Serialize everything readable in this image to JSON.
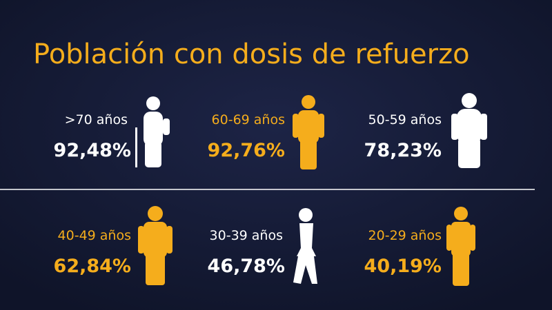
{
  "title": "Población con dosis de refuerzo",
  "groups": [
    {
      "label": ">70 años",
      "value": "92,48%"
    },
    {
      "label": "60-69 años",
      "value": "92,76%"
    },
    {
      "label": "50-59 años",
      "value": "78,23%"
    },
    {
      "label": "40-49 años",
      "value": "62,84%"
    },
    {
      "label": "30-39 años",
      "value": "46,78%"
    },
    {
      "label": "20-29 años",
      "value": "40,19%"
    }
  ]
}
